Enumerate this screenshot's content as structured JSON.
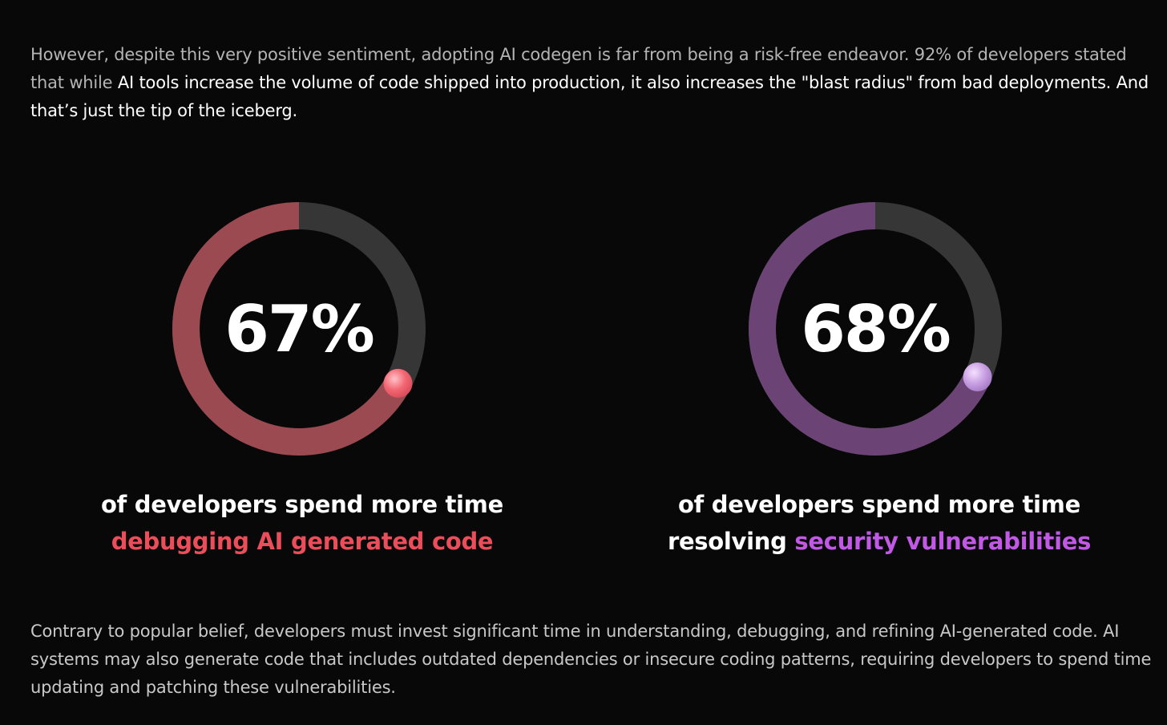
{
  "intro": {
    "dim_text": "However, despite this very positive sentiment, adopting AI codegen is far from being a risk-free endeavor. 92% of developers stated that while ",
    "bright_text": "AI tools increase the volume of code shipped into production, it also increases the \"blast radius\" from bad deployments. And that’s just the tip of the iceberg."
  },
  "stats": [
    {
      "percent_label": "67%",
      "value": 0.67,
      "caption_line1": "of developers spend more time",
      "caption_prefix": "",
      "caption_highlight": "debugging AI generated code",
      "ring_color": "#9a4a50",
      "track_color": "#363636",
      "knob_color": "#f26672",
      "highlight_color": "#ec4d5b"
    },
    {
      "percent_label": "68%",
      "value": 0.68,
      "caption_line1": "of developers spend more time",
      "caption_prefix": "resolving ",
      "caption_highlight": "security vulnerabilities",
      "ring_color": "#6b4475",
      "track_color": "#363636",
      "knob_color": "#c9a0e2",
      "highlight_color": "#c258e6"
    }
  ],
  "outro": {
    "text": "Contrary to popular belief, developers must invest significant time in understanding, debugging, and refining AI-generated code. AI systems may also generate code that includes outdated dependencies or insecure coding patterns, requiring developers to spend time updating and patching these vulnerabilities."
  }
}
